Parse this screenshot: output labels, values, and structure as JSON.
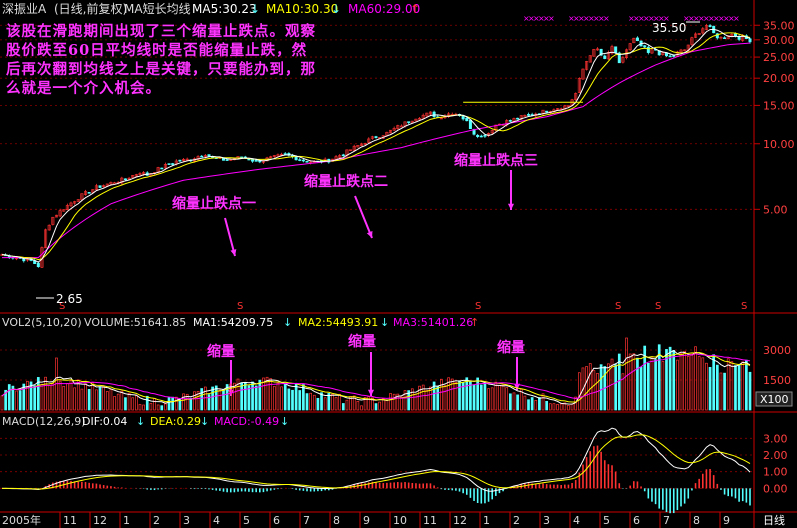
{
  "header": {
    "stock": "深振业A",
    "period": "(日线,前复权)",
    "indicator": "MA短长均线",
    "ma5": "MA5:30.23",
    "ma10": "MA10:30.30",
    "ma60": "MA60:29.00",
    "arrow_down": "↓",
    "arrow_up": "↑"
  },
  "annotations": {
    "description": "该股在滑跑期间出现了三个缩量止跌点。观察股价跌至60日平均线时是否能缩量止跌，然后再次翻到均线之上是关键，只要能办到，那么就是一个介入机会。",
    "point1": "缩量止跌点一",
    "point2": "缩量止跌点二",
    "point3": "缩量止跌点三",
    "vol1": "缩量",
    "vol2": "缩量",
    "vol3": "缩量",
    "high_label": "35.50",
    "low_label": "2.65"
  },
  "volume_header": {
    "name": "VOL2(5,10,20)",
    "volume": "VOLUME:51641.85",
    "ma1": "MA1:54209.75",
    "ma2": "MA2:54493.91",
    "ma3": "MA3:51401.26",
    "unit": "X100"
  },
  "macd_header": {
    "name": "MACD(12,26,9)",
    "dif": "DIF:0.04",
    "dea": "DEA:0.29",
    "macd": "MACD:-0.49"
  },
  "xaxis": {
    "year_label": "2005年",
    "period_label": "日线",
    "months": [
      "11",
      "12",
      "1",
      "2",
      "3",
      "4",
      "5",
      "6",
      "7",
      "8",
      "9",
      "10",
      "11",
      "12",
      "1",
      "2",
      "3",
      "4",
      "5",
      "6",
      "7",
      "8",
      "9"
    ]
  },
  "colors": {
    "up": "#ff3232",
    "down": "#54ffff",
    "ma5": "#ffffff",
    "ma10": "#ffff00",
    "ma60": "#ff00ff",
    "annotation": "#ff33ff",
    "grid": "#8b0000"
  },
  "chart_data": [
    {
      "type": "candlestick",
      "ylim": [
        2,
        37
      ],
      "y_ticks": [
        5.0,
        10.0,
        15.0,
        20.0,
        25.0,
        30.0,
        35.0
      ],
      "x_months": [
        "11",
        "12",
        "1",
        "2",
        "3",
        "4",
        "5",
        "6",
        "7",
        "8",
        "9",
        "10",
        "11",
        "12",
        "1",
        "2",
        "3",
        "4",
        "5",
        "6",
        "7",
        "8",
        "9"
      ],
      "close_path": [
        [
          0,
          3.1
        ],
        [
          4,
          3.0
        ],
        [
          8,
          2.9
        ],
        [
          10,
          2.75
        ],
        [
          11,
          3.3
        ],
        [
          12,
          4.0
        ],
        [
          14,
          4.6
        ],
        [
          18,
          5.2
        ],
        [
          22,
          5.8
        ],
        [
          26,
          6.3
        ],
        [
          30,
          6.6
        ],
        [
          34,
          6.9
        ],
        [
          38,
          7.4
        ],
        [
          40,
          7.2
        ],
        [
          44,
          7.8
        ],
        [
          48,
          8.3
        ],
        [
          52,
          8.5
        ],
        [
          56,
          9.0
        ],
        [
          58,
          8.6
        ],
        [
          62,
          8.4
        ],
        [
          66,
          8.7
        ],
        [
          70,
          8.3
        ],
        [
          74,
          8.6
        ],
        [
          78,
          8.9
        ],
        [
          82,
          8.5
        ],
        [
          86,
          8.2
        ],
        [
          90,
          8.4
        ],
        [
          94,
          9.0
        ],
        [
          98,
          9.8
        ],
        [
          102,
          10.6
        ],
        [
          106,
          11.2
        ],
        [
          110,
          12.2
        ],
        [
          114,
          13.2
        ],
        [
          118,
          13.8
        ],
        [
          120,
          13.2
        ],
        [
          124,
          13.9
        ],
        [
          126,
          13.6
        ],
        [
          128,
          12.6
        ],
        [
          130,
          11.2
        ],
        [
          132,
          10.8
        ],
        [
          134,
          11.2
        ],
        [
          136,
          12.2
        ],
        [
          140,
          12.8
        ],
        [
          144,
          13.4
        ],
        [
          148,
          13.9
        ],
        [
          152,
          14.5
        ],
        [
          156,
          15.0
        ],
        [
          158,
          17.0
        ],
        [
          160,
          22.0
        ],
        [
          162,
          26.0
        ],
        [
          164,
          27.0
        ],
        [
          166,
          24.0
        ],
        [
          168,
          28.0
        ],
        [
          170,
          23.0
        ],
        [
          172,
          27.0
        ],
        [
          174,
          30.0
        ],
        [
          176,
          28.0
        ],
        [
          178,
          26.0
        ],
        [
          180,
          27.0
        ],
        [
          182,
          25.5
        ],
        [
          184,
          25.0
        ],
        [
          186,
          26.0
        ],
        [
          188,
          27.0
        ],
        [
          190,
          30.0
        ],
        [
          192,
          33.0
        ],
        [
          194,
          35.0
        ],
        [
          196,
          32.0
        ],
        [
          198,
          30.5
        ],
        [
          200,
          32.0
        ],
        [
          202,
          31.5
        ],
        [
          204,
          30.5
        ],
        [
          206,
          30.2
        ]
      ],
      "ma60_path": [
        [
          0,
          3.0
        ],
        [
          10,
          3.0
        ],
        [
          30,
          5.3
        ],
        [
          50,
          6.8
        ],
        [
          70,
          7.6
        ],
        [
          90,
          8.3
        ],
        [
          110,
          9.6
        ],
        [
          130,
          11.6
        ],
        [
          150,
          13.3
        ],
        [
          160,
          14.8
        ],
        [
          170,
          19.0
        ],
        [
          180,
          23.0
        ],
        [
          190,
          26.5
        ],
        [
          200,
          28.5
        ],
        [
          206,
          29.0
        ]
      ],
      "current": {
        "ma5": 30.23,
        "ma10": 30.3,
        "ma60": 29.0
      },
      "high": 35.5,
      "low": 2.65,
      "resistance_line": 15.5
    },
    {
      "type": "bar",
      "name": "volume",
      "y_ticks": [
        1500,
        3000
      ],
      "unit": "X100",
      "ma": {
        "MA1": 54209.75,
        "MA2": 54493.91,
        "MA3": 51401.26
      },
      "volume": 51641.85
    },
    {
      "type": "bar",
      "name": "MACD",
      "y_ticks": [
        0.0,
        1.0,
        2.0,
        3.0
      ],
      "dif": 0.04,
      "dea": 0.29,
      "macd": -0.49
    }
  ]
}
